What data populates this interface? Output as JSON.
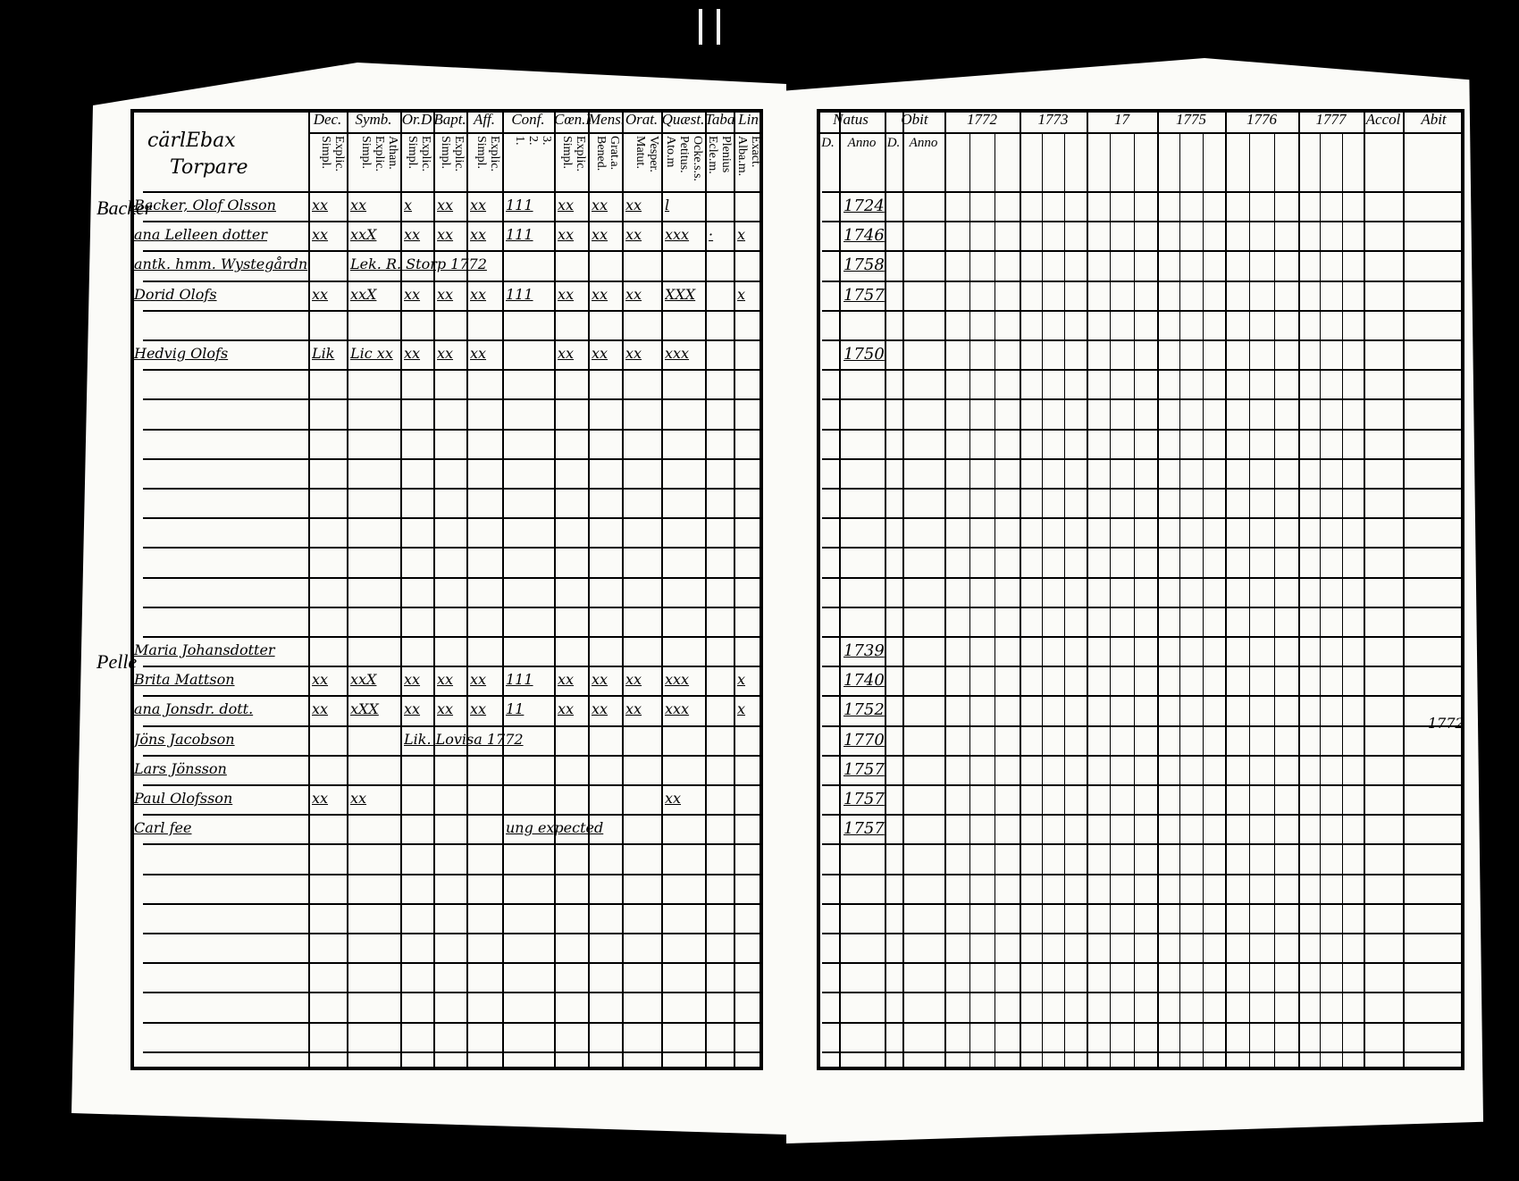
{
  "left_page": {
    "heading_lines": [
      "cärlEbax",
      "Torpare"
    ],
    "columns": [
      {
        "label": "",
        "sub": []
      },
      {
        "label": "Dec.",
        "sub": [
          "Explic.",
          "Simpl."
        ]
      },
      {
        "label": "Symb.",
        "sub": [
          "Athan.",
          "Explic.",
          "Simpl."
        ]
      },
      {
        "label": "Or.D",
        "sub": [
          "Explic.",
          "Simpl."
        ]
      },
      {
        "label": "Bapt.",
        "sub": [
          "Explic.",
          "Simpl."
        ]
      },
      {
        "label": "Aff.",
        "sub": [
          "Explic.",
          "Simpl."
        ]
      },
      {
        "label": "Conf.",
        "sub": [
          "3.",
          "2.",
          "1."
        ]
      },
      {
        "label": "Cœn.D",
        "sub": [
          "Explic.",
          "Simpl."
        ]
      },
      {
        "label": "Mens.",
        "sub": [
          "Grat.a.",
          "Bened."
        ]
      },
      {
        "label": "Orat.",
        "sub": [
          "Vesper.",
          "Matut."
        ]
      },
      {
        "label": "Quæst.",
        "sub": [
          "Ocke.s.s.",
          "Petitus.",
          "Ato.m"
        ]
      },
      {
        "label": "Taba",
        "sub": [
          "Plenius",
          "Ecle.m."
        ]
      },
      {
        "label": "Lin",
        "sub": [
          "Exact.",
          "Alba.m."
        ]
      }
    ],
    "rows": [
      [
        "Backer, Olof Olsson",
        "xx",
        "xx",
        "x",
        "xx",
        "xx",
        "111",
        "xx",
        "xx",
        "xx",
        "l",
        "",
        ""
      ],
      [
        "ana Lelleen dotter",
        "xx",
        "xxX",
        "xx",
        "xx",
        "xx",
        "111",
        "xx",
        "xx",
        "xx",
        "xxx",
        "·",
        "x"
      ],
      [
        "antk. hmm. Wystegårdn",
        "",
        "Lek. R. Storp 1772",
        "",
        "",
        "",
        "",
        "",
        "",
        "",
        "",
        "",
        ""
      ],
      [
        "Dorid Olofs",
        "xx",
        "xxX",
        "xx",
        "xx",
        "xx",
        "111",
        "xx",
        "xx",
        "xx",
        "XXX",
        "",
        "x"
      ],
      [
        "Hedvig Olofs",
        "Lik",
        "Lic xx",
        "xx",
        "xx",
        "xx",
        "",
        "xx",
        "xx",
        "xx",
        "xxx",
        "",
        ""
      ],
      [
        "Maria Johansdotter",
        "",
        "",
        "",
        "",
        "",
        "",
        "",
        "",
        "",
        "",
        "",
        ""
      ],
      [
        "Brita Mattson",
        "xx",
        "xxX",
        "xx",
        "xx",
        "xx",
        "111",
        "xx",
        "xx",
        "xx",
        "xxx",
        "",
        "x"
      ],
      [
        "ana Jonsdr. dott.",
        "xx",
        "xXX",
        "xx",
        "xx",
        "xx",
        "11",
        "xx",
        "xx",
        "xx",
        "xxx",
        "",
        "x"
      ],
      [
        "Jöns Jacobson",
        "",
        "",
        "Lik. Lovisa 1772",
        "",
        "",
        "",
        "",
        "",
        "",
        "",
        "",
        ""
      ],
      [
        "Lars Jönsson",
        "",
        "",
        "",
        "",
        "",
        "",
        "",
        "",
        "",
        "",
        "",
        ""
      ],
      [
        "Paul Olofsson",
        "xx",
        "xx",
        "",
        "",
        "",
        "",
        "",
        "",
        "",
        "xx",
        "",
        ""
      ],
      [
        "Carl fee",
        "",
        "",
        "",
        "",
        "",
        "ung expected",
        "",
        "",
        "",
        "",
        "",
        ""
      ]
    ],
    "margin_notes": [
      "Backer",
      "Pelle"
    ]
  },
  "right_page": {
    "columns": [
      "Natus",
      "Obit",
      "1772",
      "1773",
      "17",
      "1775",
      "1776",
      "1777",
      "Accol",
      "Abit"
    ],
    "sub_headers": [
      "D.",
      "Anno",
      "D.",
      "Anno"
    ],
    "birth_years": [
      "1724",
      "1746",
      "1758",
      "1757",
      "1750",
      "1739",
      "1740",
      "1752",
      "1770",
      "1757",
      "1757",
      "1757"
    ],
    "side_note": "1772"
  }
}
